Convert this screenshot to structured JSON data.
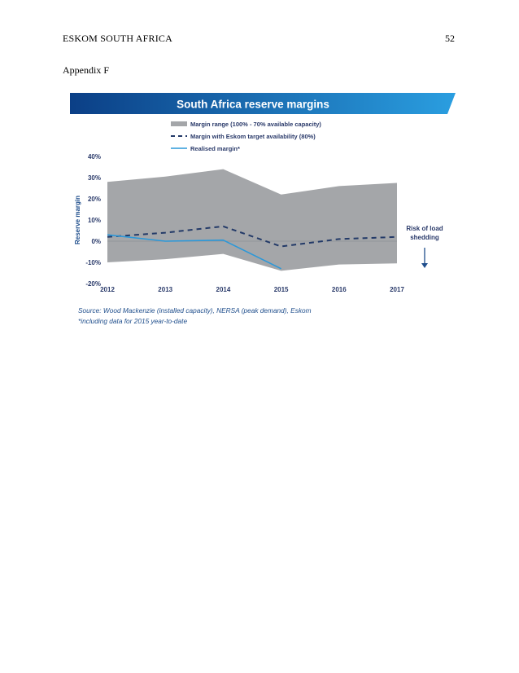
{
  "header": {
    "running_head": "ESKOM SOUTH AFRICA",
    "page_number": "52"
  },
  "section": {
    "title": "Appendix F"
  },
  "colors": {
    "title_banner_dark": "#0b3f86",
    "title_banner_light": "#2a9ee0",
    "band_fill": "#a4a6a9",
    "dashed_line": "#233a68",
    "realised_line": "#2b98d9",
    "axis_text": "#2a3a6a",
    "source_text": "#1f4e8c"
  },
  "chart_data": {
    "type": "area",
    "title": "South Africa reserve margins",
    "ylabel": "Reserve margin",
    "xlabel": "",
    "categories": [
      "2012",
      "2013",
      "2014",
      "2015",
      "2016",
      "2017"
    ],
    "ylim": [
      -20,
      40
    ],
    "yticks": [
      40,
      30,
      20,
      10,
      0,
      -10,
      -20
    ],
    "ytick_labels": [
      "40%",
      "30%",
      "20%",
      "10%",
      "0%",
      "-10%",
      "-20%"
    ],
    "band": {
      "name": "Margin range (100% - 70% available capacity)",
      "upper": [
        28,
        30.5,
        34,
        22,
        26,
        27.5
      ],
      "lower": [
        -10,
        -8.5,
        -6,
        -14,
        -11,
        -10.5
      ]
    },
    "series": [
      {
        "name": "Margin with Eskom target availability (80%)",
        "style": "dashed",
        "x": [
          "2012",
          "2013",
          "2014",
          "2015",
          "2016",
          "2017"
        ],
        "values": [
          2,
          4,
          7,
          -2.5,
          1,
          2
        ]
      },
      {
        "name": "Realised margin*",
        "style": "solid",
        "x": [
          "2012",
          "2013",
          "2014",
          "2015"
        ],
        "values": [
          3,
          0,
          0.5,
          -13
        ]
      }
    ],
    "annotation": "Risk of load shedding",
    "source": "Source: Wood Mackenzie (installed capacity), NERSA (peak demand), Eskom",
    "footnote": "*including data for 2015 year-to-date"
  }
}
